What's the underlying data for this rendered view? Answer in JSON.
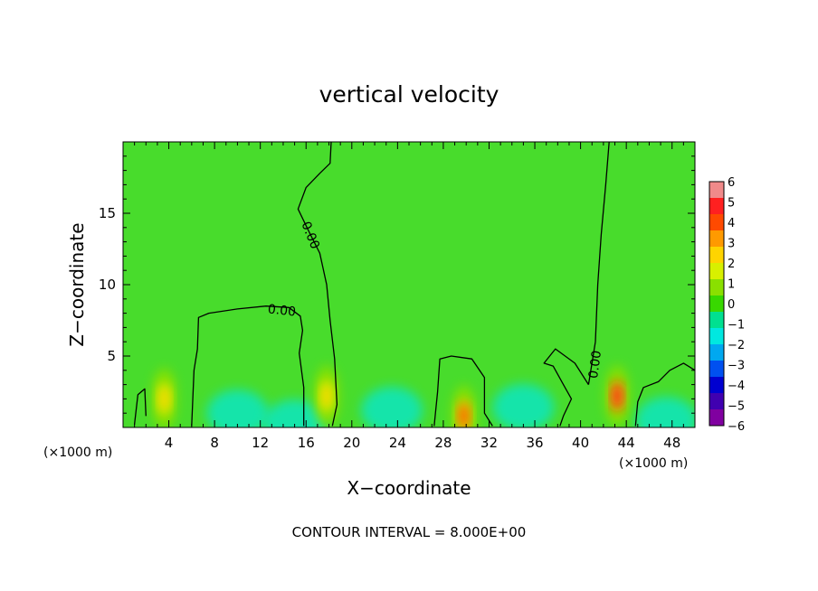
{
  "chart_data": {
    "type": "heatmap",
    "title": "vertical velocity",
    "xlabel": "X−coordinate",
    "ylabel": "Z−coordinate",
    "x_unit_left": "(×1000 m)",
    "x_unit_right": "(×1000 m)",
    "xlim": [
      0,
      50
    ],
    "ylim": [
      0,
      20
    ],
    "xticks": [
      4,
      8,
      12,
      16,
      20,
      24,
      28,
      32,
      36,
      40,
      44,
      48
    ],
    "yticks": [
      5,
      10,
      15
    ],
    "contour_label": "0.00",
    "contour_interval_text": "CONTOUR INTERVAL = 8.000E+00",
    "colorbar": {
      "levels": [
        "6",
        "5",
        "4",
        "3",
        "2",
        "1",
        "0",
        "−1",
        "−2",
        "−3",
        "−4",
        "−5",
        "−6"
      ],
      "colors": [
        "#f08a8a",
        "#ff2020",
        "#ff4a00",
        "#ff9a00",
        "#ffd400",
        "#d8f000",
        "#8ae000",
        "#38d800",
        "#00e090",
        "#00e8e0",
        "#00a8f0",
        "#0050f0",
        "#0000d0",
        "#4000b0",
        "#8000a0"
      ]
    },
    "background_color": "#48dc2c",
    "updraft_cores": [
      {
        "x": 3.6,
        "z": 2.0,
        "w": 2.5
      },
      {
        "x": 17.8,
        "z": 2.2,
        "w": 2.2
      },
      {
        "x": 29.8,
        "z": 0.8,
        "w": 4.5
      },
      {
        "x": 43.2,
        "z": 2.2,
        "w": 5.5
      }
    ],
    "downdraft_zones": [
      {
        "x": 10.0,
        "z": 1.0,
        "w": -1.5
      },
      {
        "x": 15.0,
        "z": 0.3,
        "w": -2.0
      },
      {
        "x": 23.5,
        "z": 1.2,
        "w": -1.6
      },
      {
        "x": 35.0,
        "z": 1.4,
        "w": -1.5
      },
      {
        "x": 47.5,
        "z": 0.5,
        "w": -2.0
      }
    ],
    "zero_contours": [
      [
        [
          1.0,
          0.2
        ],
        [
          1.3,
          2.3
        ],
        [
          1.9,
          2.7
        ],
        [
          2.0,
          0.8
        ]
      ],
      [
        [
          6.0,
          0.1
        ],
        [
          6.2,
          4.0
        ],
        [
          6.5,
          5.5
        ],
        [
          6.6,
          7.7
        ],
        [
          7.5,
          8.0
        ],
        [
          10.0,
          8.3
        ],
        [
          12.5,
          8.5
        ],
        [
          14.5,
          8.4
        ],
        [
          15.5,
          7.8
        ],
        [
          15.7,
          6.8
        ],
        [
          15.4,
          5.2
        ],
        [
          15.8,
          2.8
        ],
        [
          15.8,
          0.1
        ]
      ],
      [
        [
          18.3,
          0.1
        ],
        [
          18.7,
          1.6
        ],
        [
          18.5,
          4.8
        ],
        [
          18.1,
          7.5
        ],
        [
          17.8,
          10.0
        ],
        [
          17.2,
          12.2
        ],
        [
          16.2,
          13.8
        ],
        [
          15.3,
          15.3
        ],
        [
          16.0,
          16.8
        ],
        [
          17.2,
          17.8
        ],
        [
          18.1,
          18.5
        ],
        [
          18.2,
          20.0
        ]
      ],
      [
        [
          27.2,
          0.1
        ],
        [
          27.5,
          2.5
        ],
        [
          27.7,
          4.8
        ],
        [
          28.7,
          5.0
        ],
        [
          30.5,
          4.8
        ],
        [
          31.6,
          3.5
        ],
        [
          31.6,
          1.0
        ],
        [
          32.3,
          0.1
        ]
      ],
      [
        [
          40.7,
          3.0
        ],
        [
          39.5,
          4.5
        ],
        [
          37.8,
          5.5
        ],
        [
          36.8,
          4.5
        ],
        [
          37.6,
          4.3
        ],
        [
          38.5,
          3.0
        ],
        [
          39.2,
          2.0
        ],
        [
          38.5,
          0.8
        ],
        [
          38.2,
          0.1
        ]
      ],
      [
        [
          40.7,
          3.0
        ],
        [
          41.3,
          6.0
        ],
        [
          41.5,
          10.0
        ],
        [
          41.8,
          13.5
        ],
        [
          42.2,
          17.0
        ],
        [
          42.5,
          20.0
        ]
      ],
      [
        [
          44.8,
          0.1
        ],
        [
          45.0,
          1.8
        ],
        [
          45.5,
          2.8
        ],
        [
          46.8,
          3.2
        ],
        [
          47.8,
          4.0
        ],
        [
          49.0,
          4.5
        ],
        [
          50.0,
          4.0
        ]
      ]
    ]
  }
}
